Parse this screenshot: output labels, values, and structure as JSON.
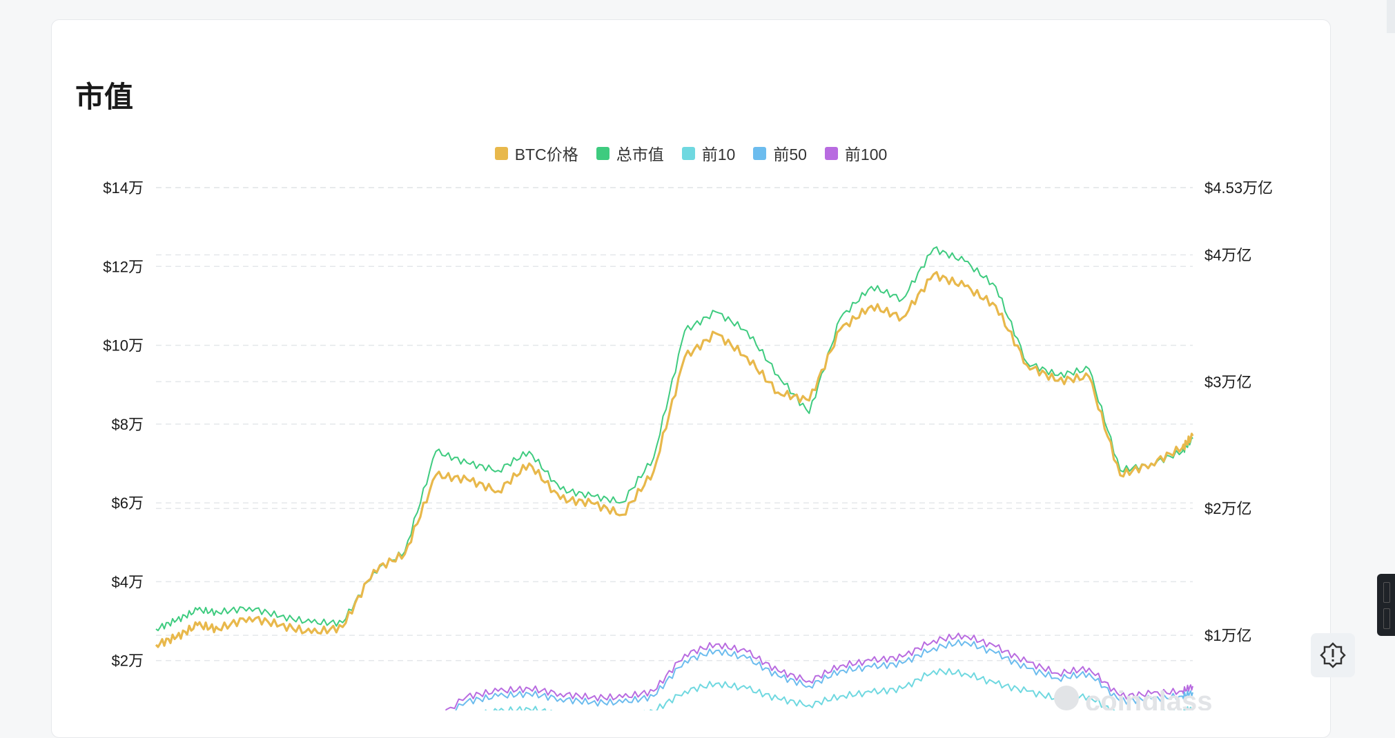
{
  "title": "市值",
  "watermark": "coinglass",
  "colors": {
    "btc": "#e8b84b",
    "total": "#3ecb7f",
    "top10": "#6fd8e0",
    "top50": "#6cbcee",
    "top100": "#b86be0",
    "grid": "#e4e7ea",
    "axis_text": "#1a1a1a"
  },
  "icons": {
    "feedback": "alert-gear-icon"
  },
  "chart_data": {
    "type": "line",
    "legend": [
      {
        "label": "BTC价格",
        "color": "#e8b84b"
      },
      {
        "label": "总市值",
        "color": "#3ecb7f"
      },
      {
        "label": "前10",
        "color": "#6fd8e0"
      },
      {
        "label": "前50",
        "color": "#6cbcee"
      },
      {
        "label": "前100",
        "color": "#b86be0"
      }
    ],
    "legend_position": "top-center",
    "grid": true,
    "left_axis": {
      "ticks": [
        {
          "value": 20000,
          "label": "$2万"
        },
        {
          "value": 40000,
          "label": "$4万"
        },
        {
          "value": 60000,
          "label": "$6万"
        },
        {
          "value": 80000,
          "label": "$8万"
        },
        {
          "value": 100000,
          "label": "$10万"
        },
        {
          "value": 120000,
          "label": "$12万"
        },
        {
          "value": 140000,
          "label": "$14万"
        }
      ],
      "range": [
        0,
        140000
      ]
    },
    "right_axis": {
      "ticks": [
        {
          "value": 1,
          "label": "$1万亿"
        },
        {
          "value": 2,
          "label": "$2万亿"
        },
        {
          "value": 3,
          "label": "$3万亿"
        },
        {
          "value": 4,
          "label": "$4万亿"
        },
        {
          "value": 4.53,
          "label": "$4.53万亿"
        }
      ],
      "range": [
        0,
        4.53
      ]
    },
    "x_range": [
      0,
      100
    ],
    "series": [
      {
        "name": "BTC价格",
        "axis": "left",
        "color": "#e8b84b",
        "x": [
          0,
          2,
          4,
          6,
          9,
          12,
          15,
          18,
          21,
          24,
          27,
          30,
          33,
          36,
          39,
          42,
          45,
          48,
          51,
          54,
          57,
          60,
          63,
          66,
          69,
          72,
          75,
          78,
          81,
          84,
          87,
          90,
          93,
          96,
          99,
          100
        ],
        "values": [
          24000,
          26000,
          29000,
          28000,
          31000,
          29000,
          27000,
          28500,
          43000,
          47000,
          67000,
          66000,
          63000,
          70000,
          61000,
          60000,
          57000,
          68000,
          97000,
          103000,
          97000,
          88000,
          86000,
          104000,
          110000,
          107000,
          118000,
          115000,
          110000,
          95000,
          91000,
          92000,
          67000,
          70000,
          74000,
          77000
        ]
      },
      {
        "name": "总市值",
        "axis": "right",
        "color": "#3ecb7f",
        "x": [
          0,
          2,
          4,
          6,
          9,
          12,
          15,
          18,
          21,
          24,
          27,
          30,
          33,
          36,
          39,
          42,
          45,
          48,
          51,
          54,
          57,
          60,
          63,
          66,
          69,
          72,
          75,
          78,
          81,
          84,
          87,
          90,
          93,
          96,
          99,
          100
        ],
        "values": [
          1.05,
          1.12,
          1.2,
          1.18,
          1.22,
          1.15,
          1.1,
          1.1,
          1.5,
          1.66,
          2.45,
          2.36,
          2.3,
          2.45,
          2.15,
          2.1,
          2.05,
          2.4,
          3.4,
          3.55,
          3.4,
          3.05,
          2.75,
          3.5,
          3.75,
          3.65,
          4.05,
          3.95,
          3.75,
          3.15,
          3.05,
          3.1,
          2.3,
          2.35,
          2.45,
          2.55
        ]
      },
      {
        "name": "前10",
        "axis": "right",
        "color": "#6fd8e0",
        "x": [
          26,
          30,
          33,
          36,
          39,
          42,
          45,
          48,
          51,
          54,
          57,
          60,
          63,
          66,
          69,
          72,
          75,
          78,
          81,
          84,
          87,
          90,
          93,
          96,
          99,
          100
        ],
        "values": [
          0.18,
          0.36,
          0.4,
          0.42,
          0.38,
          0.35,
          0.35,
          0.4,
          0.56,
          0.62,
          0.58,
          0.5,
          0.45,
          0.52,
          0.55,
          0.58,
          0.72,
          0.7,
          0.62,
          0.56,
          0.5,
          0.52,
          0.36,
          0.38,
          0.4,
          0.42
        ]
      },
      {
        "name": "前50",
        "axis": "right",
        "color": "#6cbcee",
        "x": [
          26,
          30,
          33,
          36,
          39,
          42,
          45,
          48,
          51,
          54,
          57,
          60,
          63,
          66,
          69,
          72,
          75,
          78,
          81,
          84,
          87,
          90,
          93,
          96,
          99,
          100
        ],
        "values": [
          0.25,
          0.48,
          0.52,
          0.54,
          0.5,
          0.47,
          0.47,
          0.52,
          0.8,
          0.88,
          0.82,
          0.68,
          0.6,
          0.72,
          0.75,
          0.78,
          0.9,
          0.95,
          0.86,
          0.74,
          0.66,
          0.7,
          0.48,
          0.5,
          0.52,
          0.55
        ]
      },
      {
        "name": "前100",
        "axis": "right",
        "color": "#b86be0",
        "x": [
          26,
          30,
          33,
          36,
          39,
          42,
          45,
          48,
          51,
          54,
          57,
          60,
          63,
          66,
          69,
          72,
          75,
          78,
          81,
          84,
          87,
          90,
          93,
          96,
          99,
          100
        ],
        "values": [
          0.28,
          0.52,
          0.56,
          0.58,
          0.54,
          0.51,
          0.51,
          0.56,
          0.85,
          0.93,
          0.87,
          0.72,
          0.64,
          0.76,
          0.8,
          0.83,
          0.96,
          1.0,
          0.91,
          0.79,
          0.7,
          0.74,
          0.52,
          0.54,
          0.56,
          0.6
        ]
      }
    ]
  }
}
